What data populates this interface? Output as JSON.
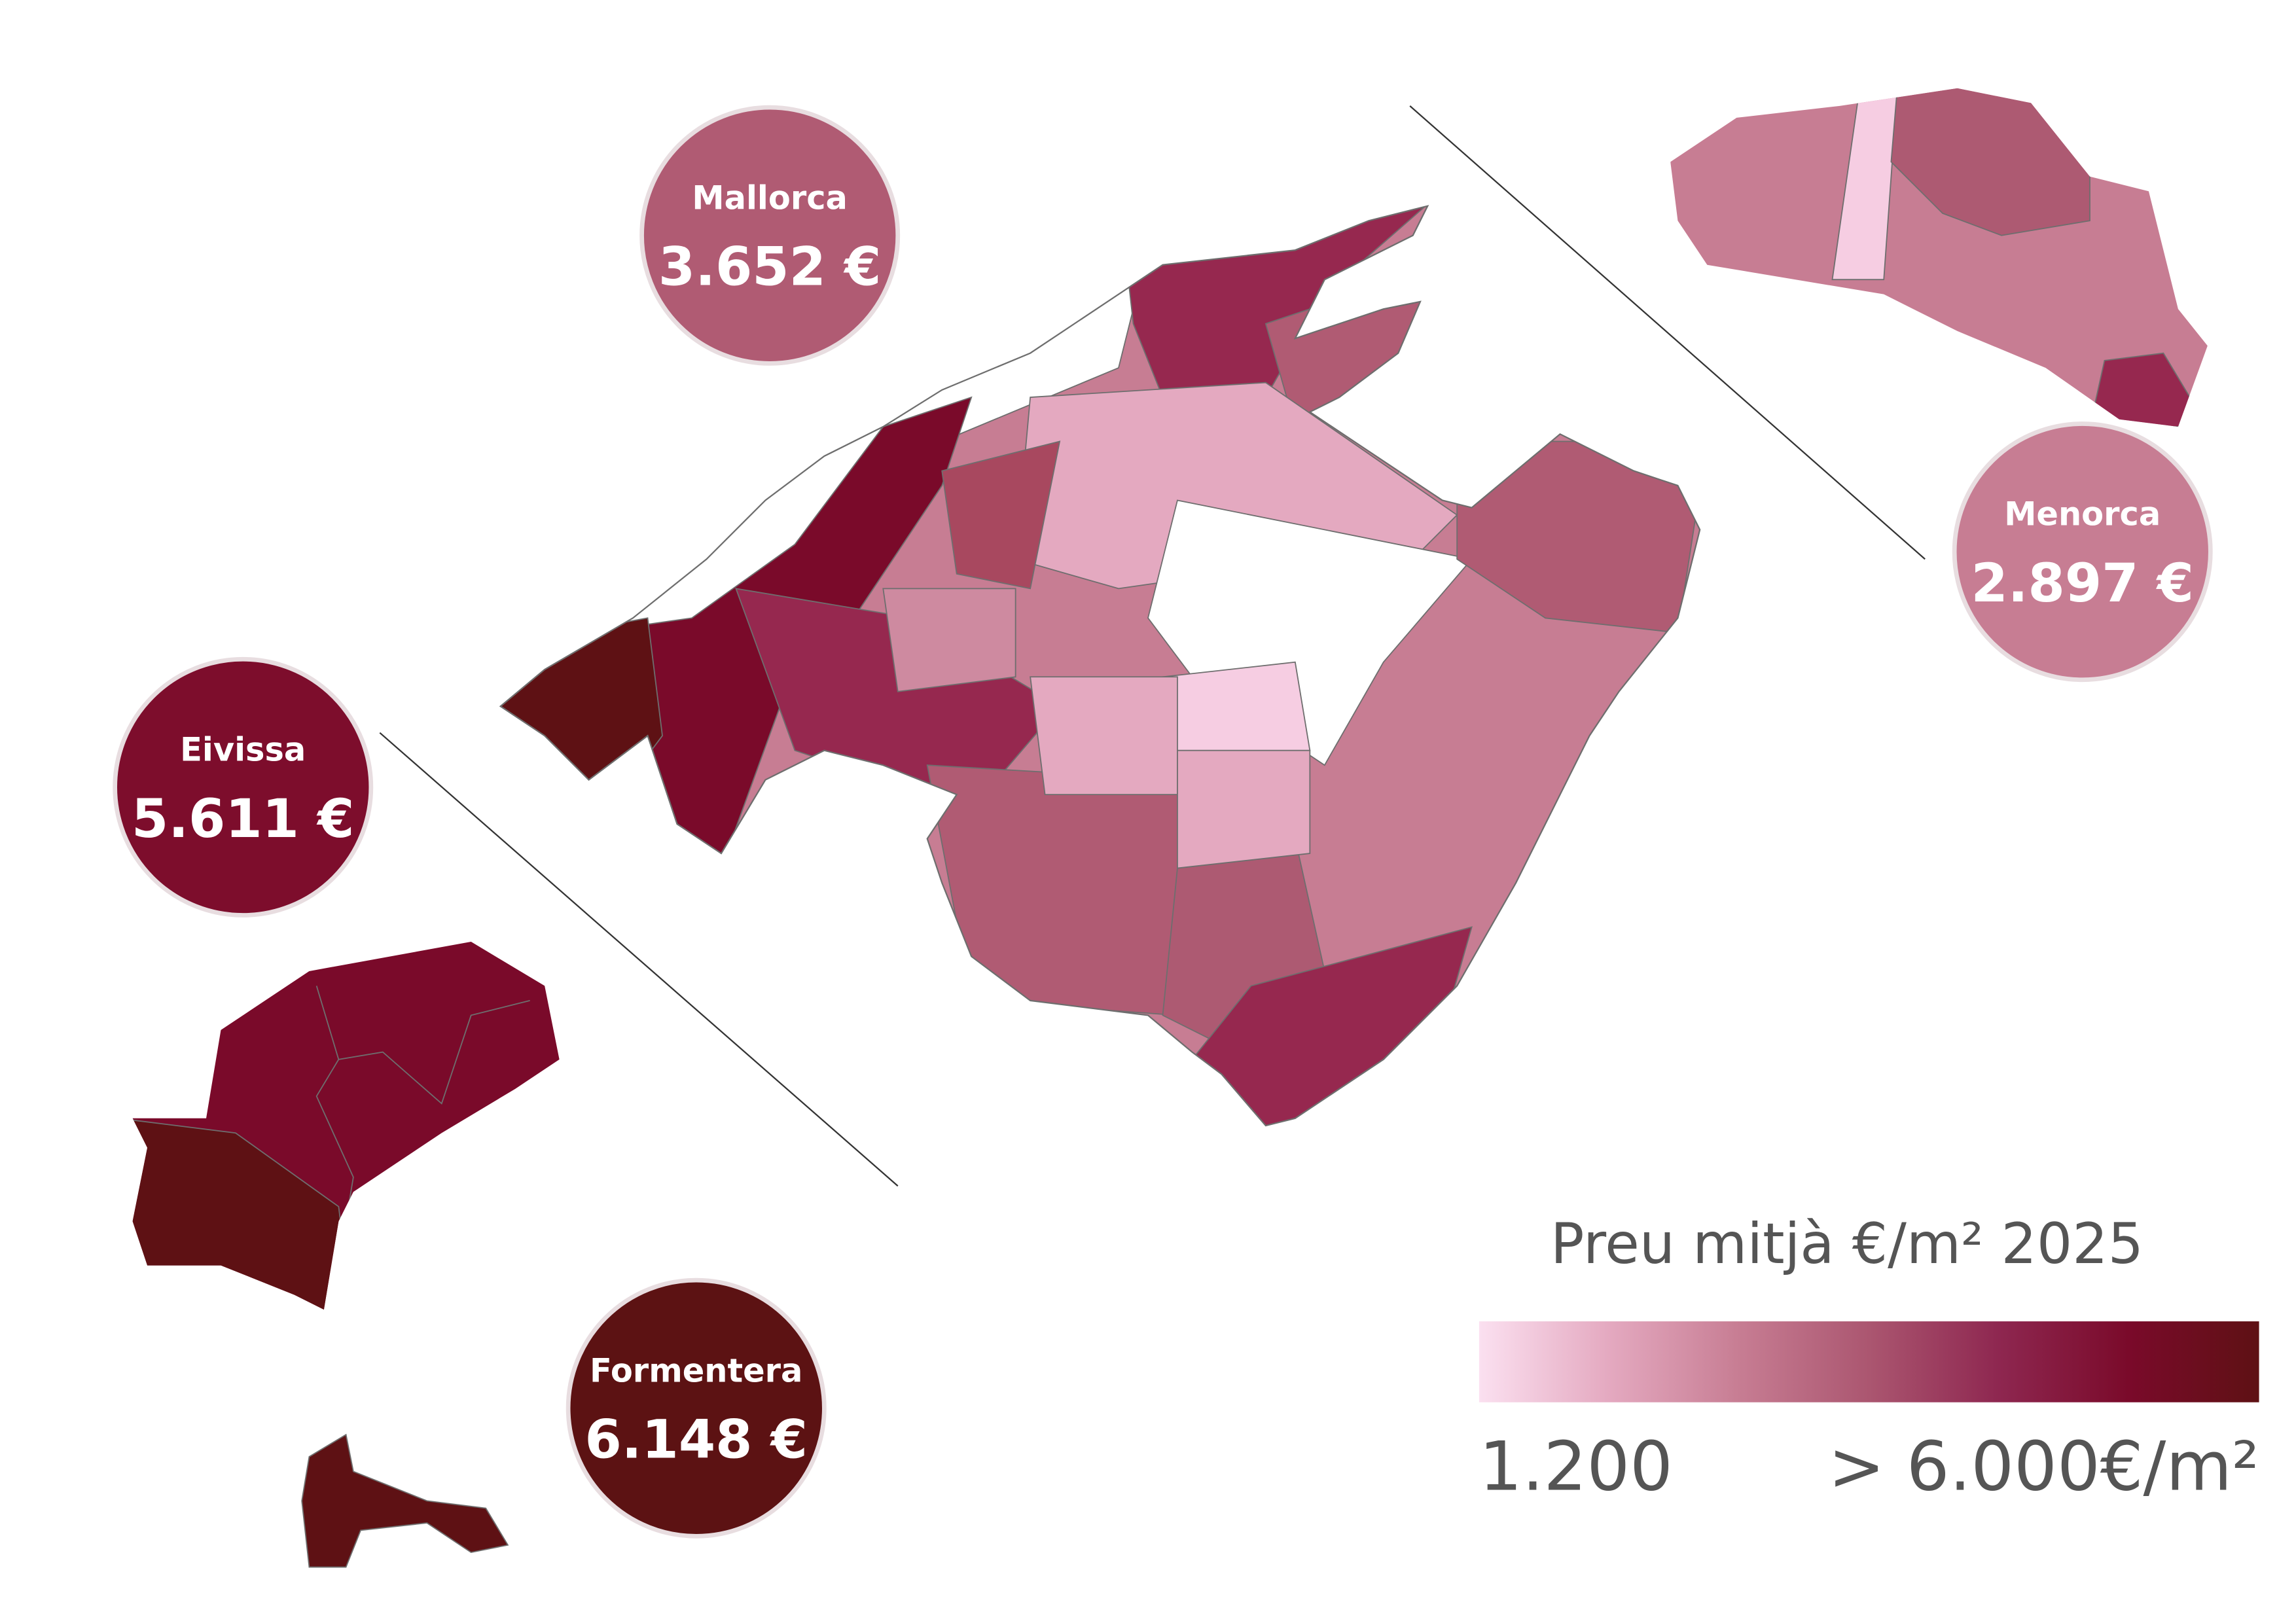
{
  "islands": [
    {
      "name": "Mallorca",
      "price": "3.652 €",
      "color": "#b05b73"
    },
    {
      "name": "Menorca",
      "price": "2.897 €",
      "color": "#c77d93"
    },
    {
      "name": "Eivissa",
      "price": "5.611 €",
      "color": "#7d0d2c"
    },
    {
      "name": "Formentera",
      "price": "6.148 €",
      "color": "#5c1213"
    }
  ],
  "legend": {
    "title": "Preu mitjà  €/m² 2025",
    "min_label": "1.200",
    "max_label": "> 6.000€/m²",
    "colors": [
      "#fbe0f0",
      "#e4a9c0",
      "#c77d93",
      "#ab5670",
      "#8e2750",
      "#7a0a2a",
      "#5e1114"
    ]
  }
}
